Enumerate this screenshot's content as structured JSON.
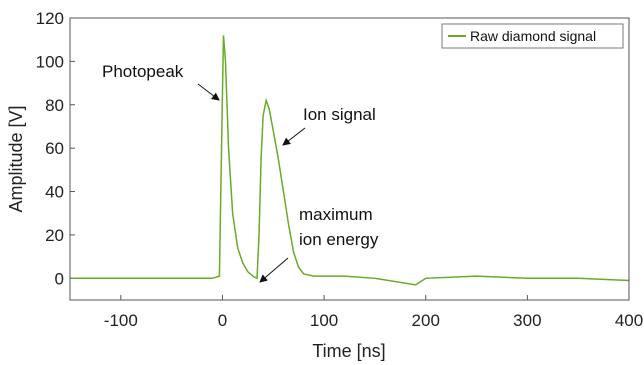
{
  "chart_data": {
    "type": "line",
    "xlabel": "Time [ns]",
    "ylabel": "Amplitude [V]",
    "xlim": [
      -150,
      400
    ],
    "ylim": [
      -10,
      120
    ],
    "xticks": [
      -100,
      0,
      100,
      200,
      300,
      400
    ],
    "yticks": [
      0,
      20,
      40,
      60,
      80,
      100,
      120
    ],
    "grid": false,
    "legend_position": "top-right",
    "series": [
      {
        "name": "Raw diamond signal",
        "color": "#6aaa2a",
        "x": [
          -150,
          -100,
          -50,
          -10,
          -3,
          0,
          1,
          3,
          6,
          10,
          15,
          20,
          25,
          30,
          34,
          36,
          38,
          40,
          43,
          46,
          50,
          55,
          60,
          65,
          70,
          75,
          80,
          90,
          100,
          120,
          150,
          190,
          200,
          250,
          300,
          350,
          400
        ],
        "y": [
          0,
          0,
          0,
          0,
          1,
          85,
          112,
          100,
          60,
          30,
          14,
          7,
          3,
          1,
          0,
          20,
          55,
          75,
          82,
          78,
          68,
          55,
          40,
          25,
          12,
          5,
          2,
          1,
          1,
          1,
          0,
          -3,
          0,
          1,
          0,
          0,
          -1
        ]
      }
    ],
    "annotations": [
      {
        "text": "Photopeak",
        "x": 0,
        "y": 88
      },
      {
        "text": "Ion signal",
        "x": 55,
        "y": 65
      },
      {
        "text": "maximum\nion energy",
        "x": 36,
        "y": 0
      }
    ]
  }
}
